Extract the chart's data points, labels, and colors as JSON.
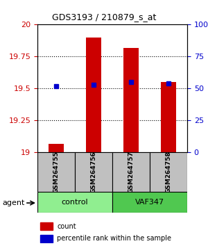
{
  "title": "GDS3193 / 210879_s_at",
  "samples": [
    "GSM264755",
    "GSM264756",
    "GSM264757",
    "GSM264758"
  ],
  "groups": [
    "control",
    "control",
    "VAF347",
    "VAF347"
  ],
  "group_labels": [
    "control",
    "VAF347"
  ],
  "group_colors": [
    "#90EE90",
    "#00CC00"
  ],
  "count_values": [
    19.07,
    19.9,
    19.82,
    19.55
  ],
  "percentile_values": [
    52,
    53,
    55,
    54
  ],
  "ylim_left": [
    19.0,
    20.0
  ],
  "ylim_right": [
    0,
    100
  ],
  "yticks_left": [
    19.0,
    19.25,
    19.5,
    19.75,
    20.0
  ],
  "ytick_labels_left": [
    "19",
    "19.25",
    "19.5",
    "19.75",
    "20"
  ],
  "yticks_right": [
    0,
    25,
    50,
    75,
    100
  ],
  "ytick_labels_right": [
    "0",
    "25",
    "50",
    "75",
    "100%"
  ],
  "bar_color": "#CC0000",
  "dot_color": "#0000CC",
  "bar_width": 0.4,
  "grid_ticks": [
    19.25,
    19.5,
    19.75
  ],
  "legend_count_label": "count",
  "legend_pct_label": "percentile rank within the sample",
  "agent_label": "agent"
}
